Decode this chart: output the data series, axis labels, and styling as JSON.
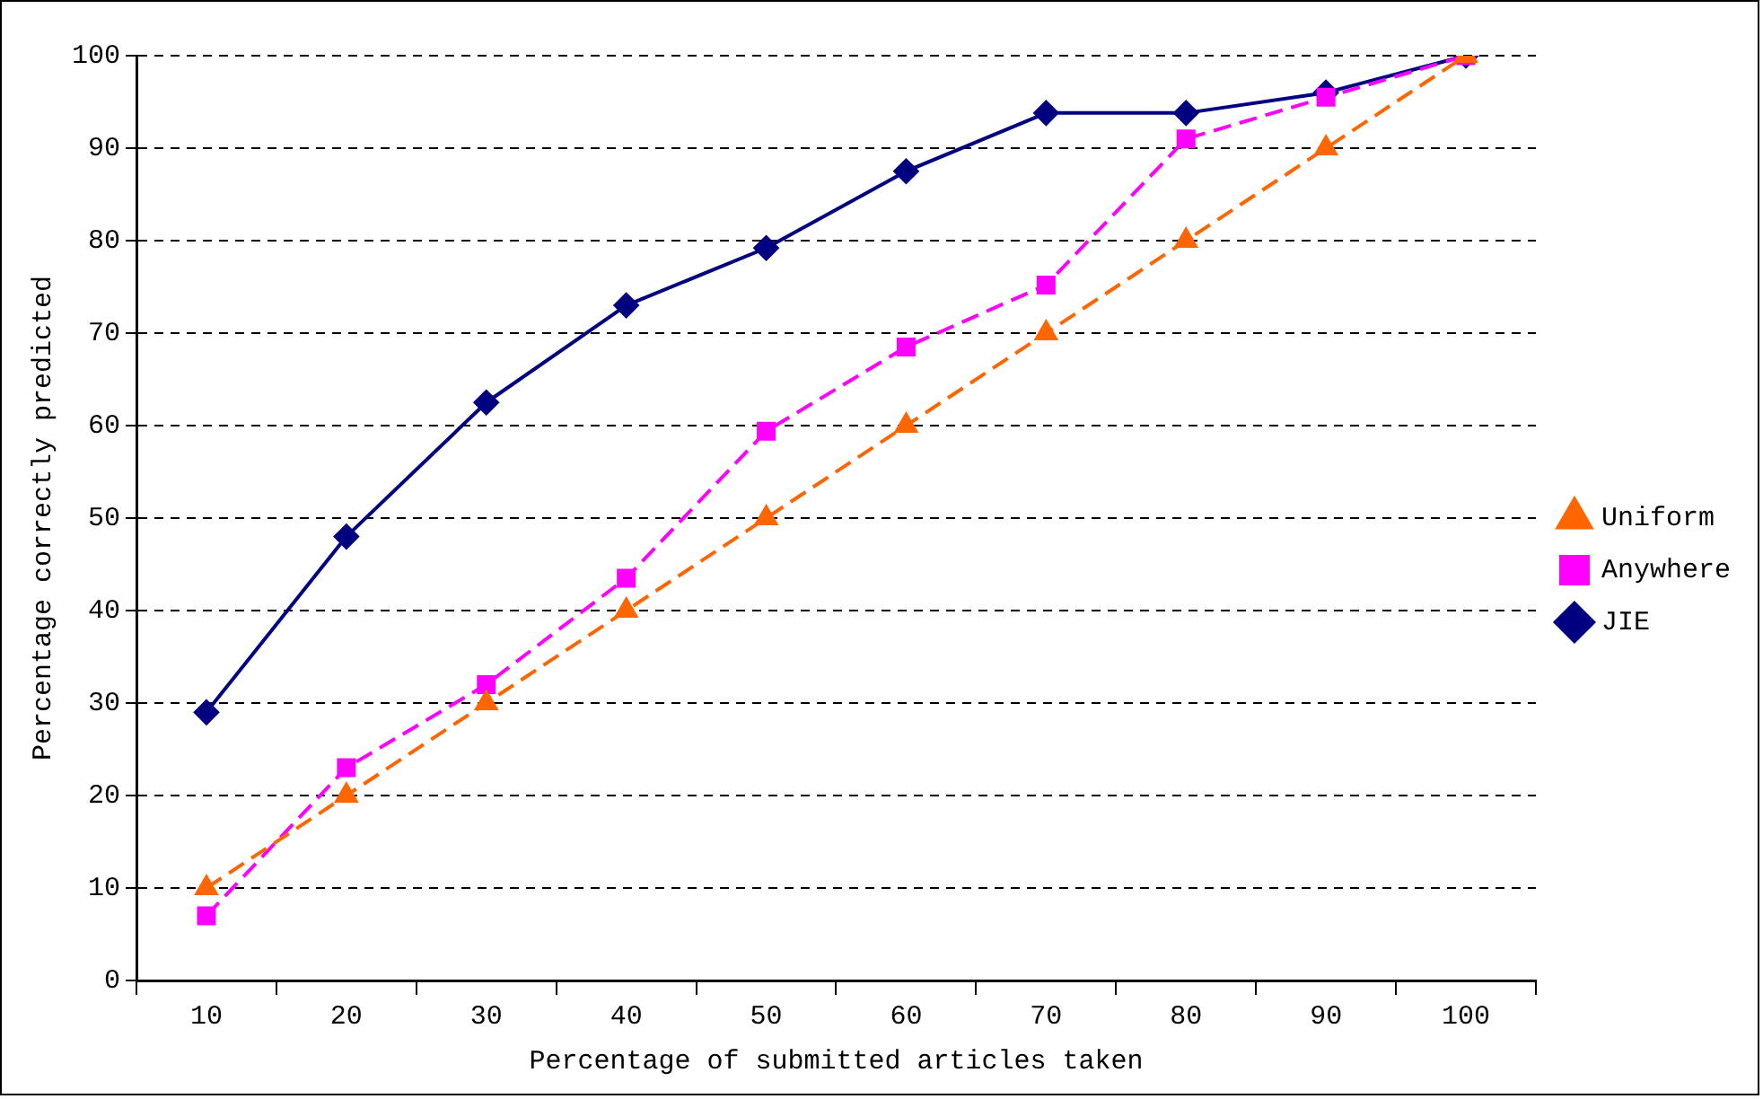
{
  "chart_data": {
    "type": "line",
    "xlabel": "Percentage of submitted articles taken",
    "ylabel": "Percentage correctly predicted",
    "categories": [
      "10",
      "20",
      "30",
      "40",
      "50",
      "60",
      "70",
      "80",
      "90",
      "100"
    ],
    "series": [
      {
        "name": "JIE",
        "color": "#000080",
        "marker": "diamond",
        "line_style": "solid",
        "values": [
          29,
          48,
          62.5,
          73,
          79.2,
          87.5,
          93.8,
          93.8,
          96,
          100
        ]
      },
      {
        "name": "Anywhere",
        "color": "#ff00ff",
        "marker": "square",
        "line_style": "dashed",
        "values": [
          7,
          23,
          32,
          43.5,
          59.4,
          68.5,
          75.2,
          91,
          95.5,
          100
        ]
      },
      {
        "name": "Uniform",
        "color": "#ff6600",
        "marker": "triangle",
        "line_style": "dashed",
        "values": [
          10,
          20,
          30,
          40,
          50,
          60,
          70,
          80,
          90,
          100
        ]
      }
    ],
    "ylim": [
      0,
      100
    ],
    "yticks": [
      0,
      10,
      20,
      30,
      40,
      50,
      60,
      70,
      80,
      90,
      100
    ],
    "grid": "y",
    "legend": "right"
  }
}
